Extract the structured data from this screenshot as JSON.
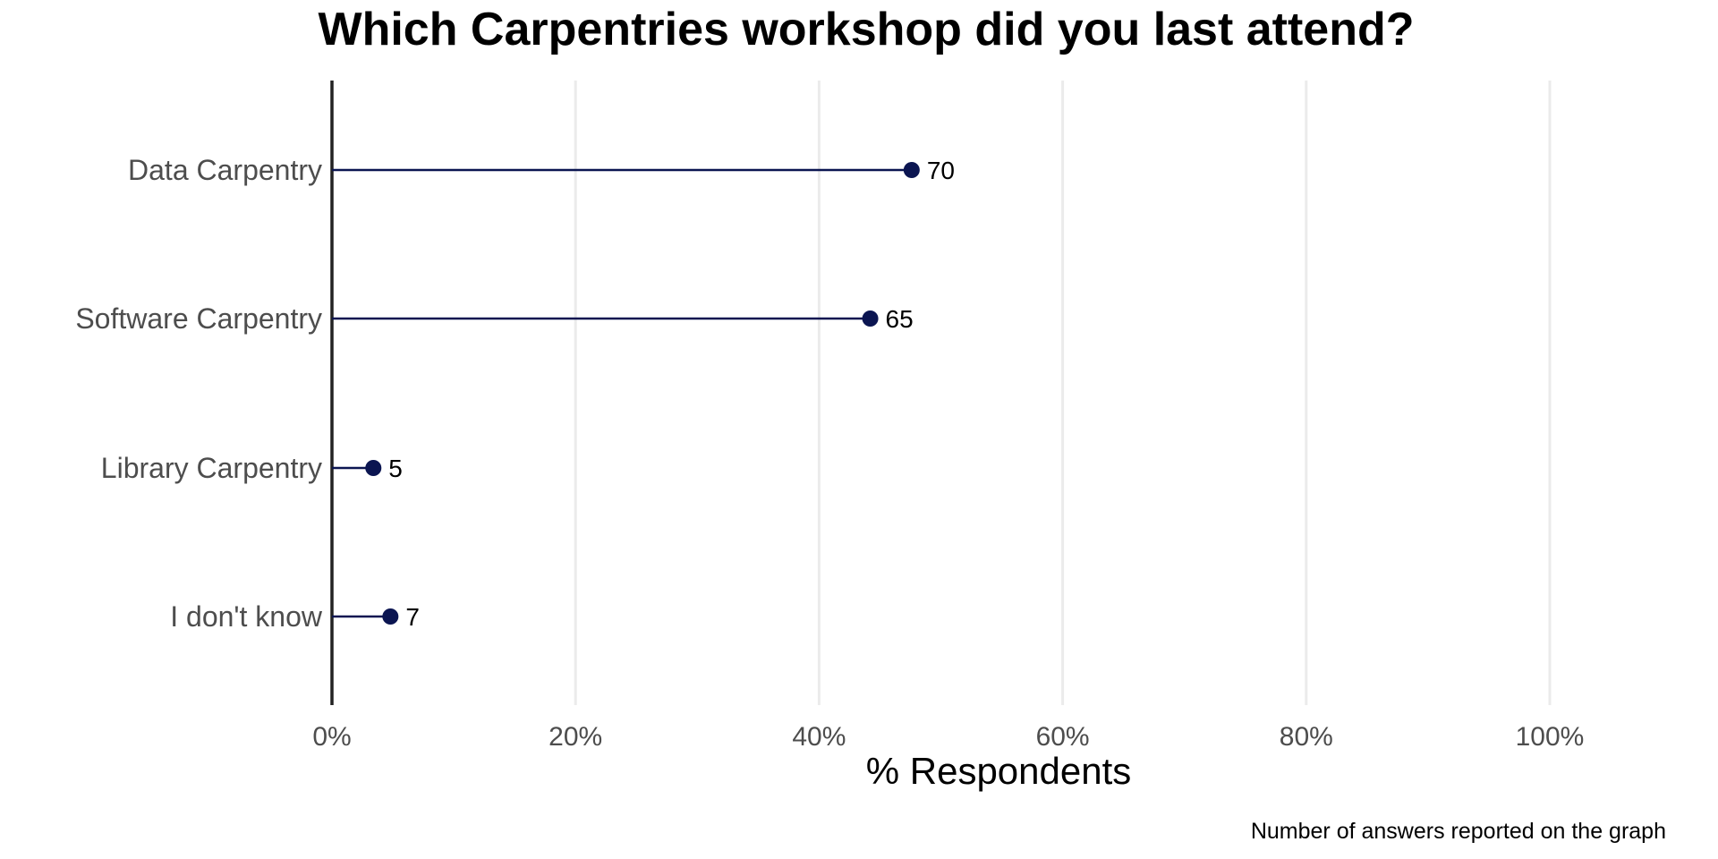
{
  "chart_data": {
    "type": "lollipop",
    "title": "Which Carpentries workshop did you last attend?",
    "xlabel": "% Respondents",
    "ylabel": "",
    "caption": "Number of answers reported on the graph",
    "categories": [
      "Data Carpentry",
      "Software Carpentry",
      "Library Carpentry",
      "I don't know"
    ],
    "values": [
      47.6,
      44.2,
      3.4,
      4.8
    ],
    "counts": [
      "70",
      "65",
      "5",
      "7"
    ],
    "xlim": [
      0,
      100
    ],
    "xticks": [
      0,
      20,
      40,
      60,
      80,
      100
    ],
    "xtick_labels": [
      "0%",
      "20%",
      "40%",
      "60%",
      "80%",
      "100%"
    ],
    "grid": "vertical",
    "legend": "none",
    "colors": {
      "point": "#0b1551",
      "grid": "#ebebeb",
      "axis": "#222222"
    }
  }
}
